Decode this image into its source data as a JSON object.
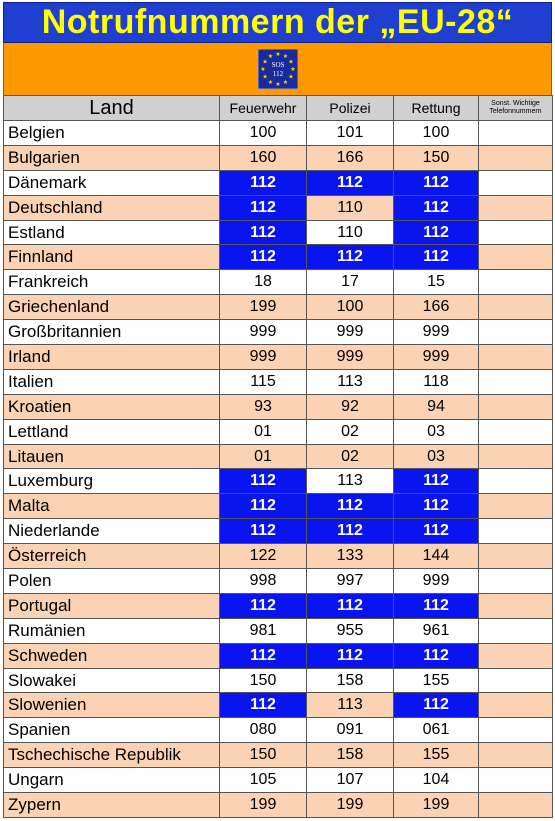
{
  "title": "Notrufnummern der „EU-28“",
  "logo": {
    "text_top": "SOS",
    "text_bottom": "112",
    "background": "#1a2a9a",
    "star_color": "#ffd700"
  },
  "colors": {
    "eu_cell": "#0a14f0",
    "alt_row": "#fbd3b4",
    "header": "#d0d0d0",
    "logo_bar": "#ff9900",
    "title_bar": "#1f3fd0",
    "title_text": "#ffff00"
  },
  "headers": {
    "land": "Land",
    "feuerwehr": "Feuerwehr",
    "polizei": "Polizei",
    "rettung": "Rettung",
    "sonstige_line1": "Sonst. Wichtige",
    "sonstige_line2": "Telefonnummern"
  },
  "rows": [
    {
      "land": "Belgien",
      "feuerwehr": "100",
      "polizei": "101",
      "rettung": "100"
    },
    {
      "land": "Bulgarien",
      "feuerwehr": "160",
      "polizei": "166",
      "rettung": "150"
    },
    {
      "land": "Dänemark",
      "feuerwehr": "112",
      "polizei": "112",
      "rettung": "112"
    },
    {
      "land": "Deutschland",
      "feuerwehr": "112",
      "polizei": "110",
      "rettung": "112"
    },
    {
      "land": "Estland",
      "feuerwehr": "112",
      "polizei": "110",
      "rettung": "112"
    },
    {
      "land": "Finnland",
      "feuerwehr": "112",
      "polizei": "112",
      "rettung": "112"
    },
    {
      "land": "Frankreich",
      "feuerwehr": "18",
      "polizei": "17",
      "rettung": "15"
    },
    {
      "land": "Griechenland",
      "feuerwehr": "199",
      "polizei": "100",
      "rettung": "166"
    },
    {
      "land": "Großbritannien",
      "feuerwehr": "999",
      "polizei": "999",
      "rettung": "999"
    },
    {
      "land": "Irland",
      "feuerwehr": "999",
      "polizei": "999",
      "rettung": "999"
    },
    {
      "land": "Italien",
      "feuerwehr": "115",
      "polizei": "113",
      "rettung": "118"
    },
    {
      "land": "Kroatien",
      "feuerwehr": "93",
      "polizei": "92",
      "rettung": "94"
    },
    {
      "land": "Lettland",
      "feuerwehr": "01",
      "polizei": "02",
      "rettung": "03"
    },
    {
      "land": "Litauen",
      "feuerwehr": "01",
      "polizei": "02",
      "rettung": "03"
    },
    {
      "land": "Luxemburg",
      "feuerwehr": "112",
      "polizei": "113",
      "rettung": "112"
    },
    {
      "land": "Malta",
      "feuerwehr": "112",
      "polizei": "112",
      "rettung": "112"
    },
    {
      "land": "Niederlande",
      "feuerwehr": "112",
      "polizei": "112",
      "rettung": "112"
    },
    {
      "land": "Österreich",
      "feuerwehr": "122",
      "polizei": "133",
      "rettung": "144"
    },
    {
      "land": "Polen",
      "feuerwehr": "998",
      "polizei": "997",
      "rettung": "999"
    },
    {
      "land": "Portugal",
      "feuerwehr": "112",
      "polizei": "112",
      "rettung": "112"
    },
    {
      "land": "Rumänien",
      "feuerwehr": "981",
      "polizei": "955",
      "rettung": "961"
    },
    {
      "land": "Schweden",
      "feuerwehr": "112",
      "polizei": "112",
      "rettung": "112"
    },
    {
      "land": "Slowakei",
      "feuerwehr": "150",
      "polizei": "158",
      "rettung": "155"
    },
    {
      "land": "Slowenien",
      "feuerwehr": "112",
      "polizei": "113",
      "rettung": "112"
    },
    {
      "land": "Spanien",
      "feuerwehr": "080",
      "polizei": "091",
      "rettung": "061"
    },
    {
      "land": "Tschechische Republik",
      "feuerwehr": "150",
      "polizei": "158",
      "rettung": "155"
    },
    {
      "land": "Ungarn",
      "feuerwehr": "105",
      "polizei": "107",
      "rettung": "104"
    },
    {
      "land": "Zypern",
      "feuerwehr": "199",
      "polizei": "199",
      "rettung": "199"
    }
  ]
}
